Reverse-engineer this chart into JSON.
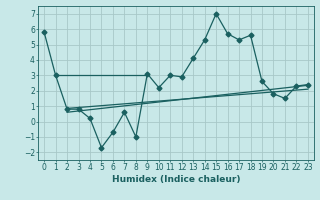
{
  "xlabel": "Humidex (Indice chaleur)",
  "background_color": "#c8e8e8",
  "grid_color": "#a8c8c8",
  "line_color": "#1a6060",
  "xlim": [
    -0.5,
    23.5
  ],
  "ylim": [
    -2.5,
    7.5
  ],
  "yticks": [
    -2,
    -1,
    0,
    1,
    2,
    3,
    4,
    5,
    6,
    7
  ],
  "xticks": [
    0,
    1,
    2,
    3,
    4,
    5,
    6,
    7,
    8,
    9,
    10,
    11,
    12,
    13,
    14,
    15,
    16,
    17,
    18,
    19,
    20,
    21,
    22,
    23
  ],
  "main_series_x": [
    0,
    1,
    2,
    3,
    4,
    5,
    6,
    7,
    8,
    9,
    10,
    11,
    12,
    13,
    14,
    15,
    16,
    17,
    18,
    19,
    20,
    21,
    22,
    23
  ],
  "main_series_y": [
    5.8,
    3.0,
    0.8,
    0.8,
    0.2,
    -1.7,
    -0.7,
    0.6,
    -1.0,
    3.1,
    2.2,
    3.0,
    2.9,
    4.1,
    5.3,
    7.0,
    5.7,
    5.3,
    5.6,
    2.6,
    1.8,
    1.5,
    2.3,
    2.4
  ],
  "line1_x": [
    1,
    9
  ],
  "line1_y": [
    3.0,
    3.0
  ],
  "line2_x": [
    2,
    23
  ],
  "line2_y": [
    0.85,
    2.1
  ],
  "line3_x": [
    2,
    23
  ],
  "line3_y": [
    0.6,
    2.35
  ],
  "marker_size": 2.5,
  "line_width": 0.9
}
